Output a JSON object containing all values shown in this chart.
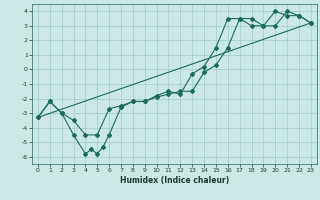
{
  "xlabel": "Humidex (Indice chaleur)",
  "ylabel": "",
  "bg_color": "#cce8e4",
  "grid_color": "#9eccc7",
  "line_color": "#1a6b5e",
  "xlim": [
    -0.5,
    23.5
  ],
  "ylim": [
    -6.5,
    4.5
  ],
  "xticks": [
    0,
    1,
    2,
    3,
    4,
    5,
    6,
    7,
    8,
    9,
    10,
    11,
    12,
    13,
    14,
    15,
    16,
    17,
    18,
    19,
    20,
    21,
    22,
    23
  ],
  "yticks": [
    -6,
    -5,
    -4,
    -3,
    -2,
    -1,
    0,
    1,
    2,
    3,
    4
  ],
  "line1_x": [
    0,
    1,
    2,
    3,
    4,
    4.5,
    5,
    5.5,
    6,
    7,
    8,
    9,
    10,
    11,
    12,
    13,
    14,
    15,
    16,
    17,
    18,
    19,
    20,
    21,
    22,
    23
  ],
  "line1_y": [
    -3.3,
    -2.2,
    -3.0,
    -4.5,
    -5.8,
    -5.5,
    -5.8,
    -5.3,
    -4.5,
    -2.6,
    -2.2,
    -2.2,
    -1.8,
    -1.5,
    -1.7,
    -0.3,
    0.2,
    1.5,
    3.5,
    3.5,
    3.0,
    3.0,
    4.0,
    3.7,
    3.7,
    3.2
  ],
  "line2_x": [
    0,
    1,
    2,
    3,
    4,
    5,
    6,
    7,
    8,
    9,
    10,
    11,
    12,
    13,
    14,
    15,
    16,
    17,
    18,
    19,
    20,
    21,
    22,
    23
  ],
  "line2_y": [
    -3.3,
    -2.2,
    -3.0,
    -3.5,
    -4.5,
    -4.5,
    -2.7,
    -2.5,
    -2.2,
    -2.2,
    -1.9,
    -1.7,
    -1.5,
    -1.5,
    -0.2,
    0.3,
    1.5,
    3.5,
    3.5,
    3.0,
    3.0,
    4.0,
    3.7,
    3.2
  ],
  "trend_x": [
    0,
    23
  ],
  "trend_y": [
    -3.3,
    3.2
  ],
  "marker": "D",
  "marker_size": 2,
  "line_width": 0.8
}
